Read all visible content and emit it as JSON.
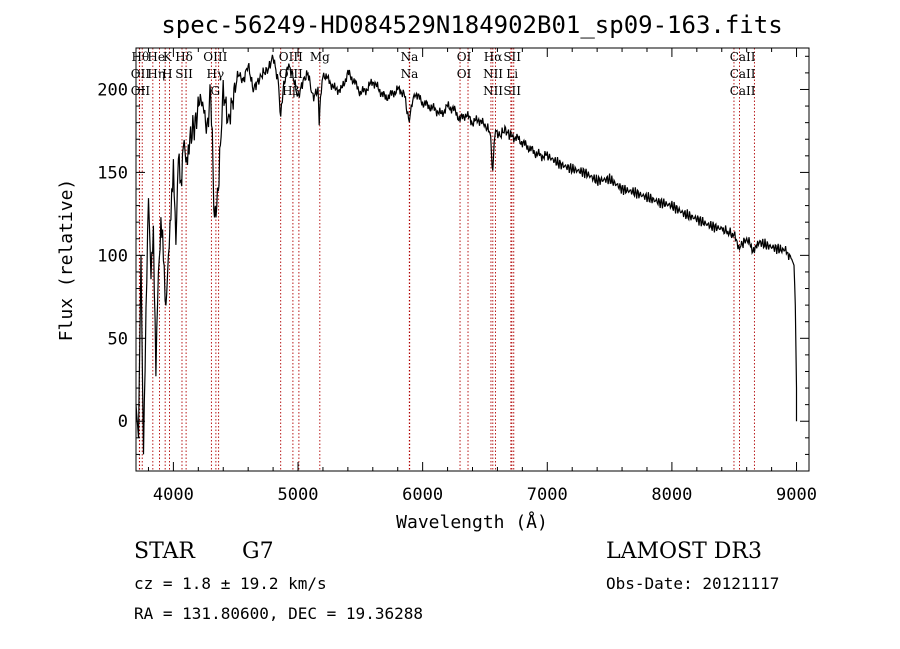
{
  "chart_data": {
    "type": "line",
    "title": "spec-56249-HD084529N184902B01_sp09-163.fits",
    "xlabel": "Wavelength (Å)",
    "ylabel": "Flux (relative)",
    "xlim": [
      3700,
      9100
    ],
    "ylim": [
      -30,
      225
    ],
    "xticks": [
      4000,
      5000,
      6000,
      7000,
      8000,
      9000
    ],
    "yticks": [
      0,
      50,
      100,
      150,
      200
    ],
    "colors": {
      "spectrum": "#000000",
      "lines": "#b00000",
      "axes": "#000000"
    },
    "series": [
      {
        "name": "spectrum",
        "x": [
          3700,
          3720,
          3740,
          3760,
          3780,
          3800,
          3820,
          3840,
          3860,
          3880,
          3900,
          3920,
          3940,
          3960,
          3980,
          4000,
          4020,
          4040,
          4060,
          4080,
          4100,
          4120,
          4150,
          4180,
          4210,
          4240,
          4270,
          4300,
          4330,
          4360,
          4400,
          4440,
          4480,
          4520,
          4560,
          4600,
          4640,
          4680,
          4720,
          4760,
          4800,
          4840,
          4861,
          4880,
          4920,
          4960,
          5000,
          5040,
          5080,
          5120,
          5160,
          5170,
          5180,
          5200,
          5250,
          5300,
          5350,
          5400,
          5450,
          5500,
          5550,
          5600,
          5650,
          5700,
          5750,
          5800,
          5850,
          5893,
          5920,
          5950,
          6000,
          6050,
          6100,
          6150,
          6200,
          6250,
          6300,
          6350,
          6400,
          6450,
          6500,
          6540,
          6563,
          6580,
          6620,
          6660,
          6700,
          6750,
          6800,
          6850,
          6900,
          6950,
          7000,
          7100,
          7200,
          7300,
          7400,
          7500,
          7600,
          7700,
          7800,
          7900,
          8000,
          8100,
          8200,
          8300,
          8400,
          8498,
          8542,
          8600,
          8662,
          8700,
          8800,
          8900,
          8950,
          8980,
          8990,
          9000,
          9000
        ],
        "y": [
          10,
          -10,
          100,
          -20,
          60,
          140,
          85,
          115,
          30,
          90,
          120,
          100,
          70,
          95,
          130,
          150,
          110,
          160,
          140,
          170,
          155,
          165,
          175,
          180,
          195,
          190,
          175,
          200,
          120,
          140,
          200,
          180,
          195,
          210,
          205,
          215,
          200,
          205,
          210,
          212,
          220,
          205,
          185,
          200,
          215,
          208,
          195,
          205,
          210,
          195,
          200,
          175,
          195,
          210,
          205,
          200,
          200,
          210,
          205,
          198,
          200,
          205,
          200,
          195,
          197,
          200,
          198,
          180,
          195,
          197,
          192,
          190,
          188,
          185,
          190,
          188,
          182,
          185,
          180,
          182,
          178,
          175,
          150,
          175,
          172,
          176,
          172,
          171,
          168,
          165,
          162,
          160,
          160,
          155,
          152,
          150,
          145,
          146,
          140,
          138,
          135,
          132,
          130,
          125,
          122,
          118,
          116,
          112,
          105,
          110,
          102,
          108,
          105,
          103,
          100,
          94,
          70,
          20,
          0
        ]
      }
    ],
    "line_groups": [
      {
        "labels": [
          "Hθ",
          "OII",
          "OII"
        ],
        "x": [
          3750,
          3727,
          3729
        ]
      },
      {
        "labels": [
          "He",
          "Hη"
        ],
        "x": [
          3835,
          3889
        ]
      },
      {
        "labels": [
          "K",
          "H"
        ],
        "x": [
          3934,
          3969
        ]
      },
      {
        "labels": [
          "Hδ",
          "SII"
        ],
        "x": [
          4102,
          4069
        ]
      },
      {
        "labels": [
          "OIII",
          "Hγ",
          "G"
        ],
        "x": [
          4363,
          4341,
          4305
        ]
      },
      {
        "labels": [
          "OIII",
          "OIII",
          "Hβ"
        ],
        "x": [
          5007,
          4959,
          4861
        ]
      },
      {
        "labels": [
          "Mg"
        ],
        "x": [
          5175
        ]
      },
      {
        "labels": [
          "Na",
          "Na"
        ],
        "x": [
          5893,
          5896
        ]
      },
      {
        "labels": [
          "OI",
          "OI"
        ],
        "x": [
          6300,
          6364
        ]
      },
      {
        "labels": [
          "Hα",
          "NII",
          "NII"
        ],
        "x": [
          6563,
          6548,
          6584
        ]
      },
      {
        "labels": [
          "SII",
          "Li",
          "SII"
        ],
        "x": [
          6716,
          6708,
          6731
        ]
      },
      {
        "labels": [
          "CaII",
          "CaII",
          "CaII"
        ],
        "x": [
          8542,
          8498,
          8662
        ]
      }
    ]
  },
  "info": {
    "object_type": "STAR",
    "subclass": "G7",
    "survey": "LAMOST DR3",
    "redshift": "cz = 1.8 ± 19.2 km/s",
    "obs_date": "Obs-Date: 20121117",
    "coordinates": "RA = 131.80600, DEC =  19.36288"
  }
}
